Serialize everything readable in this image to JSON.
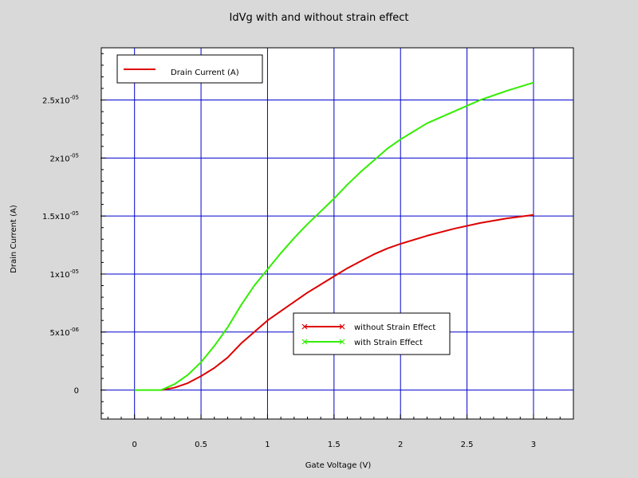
{
  "chart_data": {
    "type": "line",
    "title": "IdVg with and without strain effect",
    "xlabel": "Gate Voltage (V)",
    "ylabel": "Drain Current (A)",
    "xlim": [
      -0.25,
      3.3
    ],
    "ylim": [
      -2.5e-06,
      2.95e-05
    ],
    "grid": true,
    "x_ticks": [
      0,
      0.5,
      1,
      1.5,
      2,
      2.5,
      3
    ],
    "x_tick_labels": [
      "0",
      "0.5",
      "1",
      "1.5",
      "2",
      "2.5",
      "3"
    ],
    "y_ticks": [
      0,
      5e-06,
      1e-05,
      1.5e-05,
      2e-05,
      2.5e-05
    ],
    "y_tick_labels": [
      {
        "base": "0",
        "exp": ""
      },
      {
        "base": "5x10",
        "exp": "-06"
      },
      {
        "base": "1x10",
        "exp": "-05"
      },
      {
        "base": "1.5x10",
        "exp": "-05"
      },
      {
        "base": "2x10",
        "exp": "-05"
      },
      {
        "base": "2.5x10",
        "exp": "-05"
      }
    ],
    "axis_legend": {
      "label": "Drain Current (A)",
      "color": "#dd0000",
      "placement": "top-left"
    },
    "series_legend_placement": "lower-center",
    "series": [
      {
        "name": "without Strain Effect",
        "color": "#dd0000",
        "x": [
          0.2,
          0.3,
          0.4,
          0.5,
          0.6,
          0.7,
          0.8,
          0.9,
          1.0,
          1.1,
          1.2,
          1.3,
          1.4,
          1.5,
          1.6,
          1.7,
          1.8,
          1.9,
          2.0,
          2.2,
          2.4,
          2.6,
          2.8,
          3.0
        ],
        "y": [
          0,
          2e-07,
          6e-07,
          1.2e-06,
          1.9e-06,
          2.8e-06,
          4e-06,
          5e-06,
          6e-06,
          6.8e-06,
          7.6e-06,
          8.4e-06,
          9.1e-06,
          9.8e-06,
          1.05e-05,
          1.11e-05,
          1.17e-05,
          1.22e-05,
          1.26e-05,
          1.33e-05,
          1.39e-05,
          1.44e-05,
          1.48e-05,
          1.51e-05
        ]
      },
      {
        "name": "with Strain Effect",
        "color": "#33ee00",
        "x": [
          0,
          0.1,
          0.2,
          0.3,
          0.4,
          0.5,
          0.6,
          0.7,
          0.8,
          0.9,
          1.0,
          1.1,
          1.2,
          1.3,
          1.4,
          1.5,
          1.6,
          1.7,
          1.8,
          1.9,
          2.0,
          2.2,
          2.4,
          2.6,
          2.8,
          3.0
        ],
        "y": [
          0,
          0,
          0,
          5e-07,
          1.3e-06,
          2.4e-06,
          3.8e-06,
          5.4e-06,
          7.3e-06,
          9e-06,
          1.04e-05,
          1.18e-05,
          1.31e-05,
          1.43e-05,
          1.54e-05,
          1.65e-05,
          1.77e-05,
          1.88e-05,
          1.98e-05,
          2.08e-05,
          2.16e-05,
          2.3e-05,
          2.4e-05,
          2.5e-05,
          2.58e-05,
          2.65e-05
        ]
      }
    ]
  }
}
